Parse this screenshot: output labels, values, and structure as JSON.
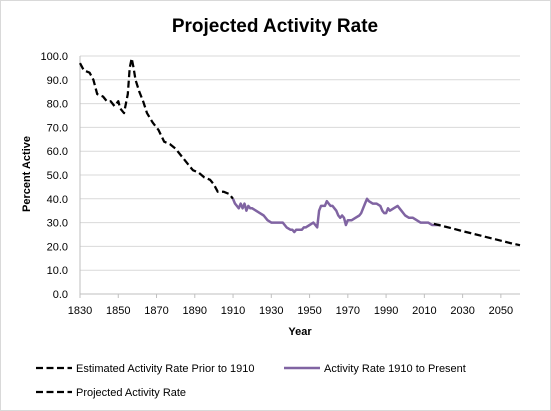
{
  "chart_data": {
    "type": "line",
    "title": "Projected Activity Rate",
    "xlabel": "Year",
    "ylabel": "Percent Active",
    "xlim": [
      1830,
      2060
    ],
    "ylim": [
      0,
      100
    ],
    "x_ticks": [
      "1830",
      "1850",
      "1870",
      "1890",
      "1910",
      "1930",
      "1950",
      "1970",
      "1990",
      "2010",
      "2030",
      "2050"
    ],
    "y_ticks": [
      "0.0",
      "10.0",
      "20.0",
      "30.0",
      "40.0",
      "50.0",
      "60.0",
      "70.0",
      "80.0",
      "90.0",
      "100.0"
    ],
    "grid": "horizontal",
    "legend_position": "bottom",
    "series": [
      {
        "name": "Estimated Activity Rate Prior to 1910",
        "color": "#000000",
        "style": "dashed",
        "x": [
          1830,
          1832,
          1835,
          1837,
          1839,
          1842,
          1844,
          1846,
          1848,
          1850,
          1851,
          1853,
          1855,
          1856,
          1857,
          1858,
          1859,
          1861,
          1863,
          1865,
          1868,
          1871,
          1874,
          1877,
          1880,
          1883,
          1886,
          1889,
          1892,
          1895,
          1898,
          1900,
          1902,
          1905,
          1908,
          1910
        ],
        "y": [
          97,
          94,
          93,
          90,
          84,
          83,
          81,
          81,
          79,
          81,
          78,
          76,
          84,
          95,
          99,
          95,
          90,
          85,
          81,
          76,
          72,
          69,
          64,
          63,
          61,
          58,
          55,
          52,
          51,
          49,
          48,
          46,
          43,
          43,
          42,
          40
        ]
      },
      {
        "name": "Activity Rate 1910 to Present",
        "color": "#8064a2",
        "style": "solid",
        "x": [
          1910,
          1911,
          1912,
          1913,
          1914,
          1915,
          1916,
          1917,
          1918,
          1919,
          1920,
          1922,
          1924,
          1926,
          1928,
          1930,
          1932,
          1934,
          1936,
          1938,
          1940,
          1941,
          1942,
          1943,
          1944,
          1945,
          1946,
          1947,
          1948,
          1950,
          1952,
          1953,
          1954,
          1955,
          1956,
          1957,
          1958,
          1959,
          1960,
          1961,
          1962,
          1963,
          1964,
          1965,
          1966,
          1967,
          1968,
          1969,
          1970,
          1972,
          1974,
          1976,
          1977,
          1978,
          1979,
          1980,
          1981,
          1983,
          1985,
          1987,
          1988,
          1989,
          1990,
          1991,
          1992,
          1994,
          1996,
          1997,
          1998,
          1999,
          2000,
          2002,
          2004,
          2006,
          2008,
          2010,
          2012,
          2014,
          2016,
          2018
        ],
        "y": [
          40,
          38,
          37,
          36,
          38,
          36,
          38,
          35,
          37,
          36,
          36,
          35,
          34,
          33,
          31,
          30,
          30,
          30,
          30,
          28,
          27,
          27,
          26,
          27,
          27,
          27,
          27,
          28,
          28,
          29,
          30,
          29,
          28,
          35,
          37,
          37,
          37,
          39,
          38,
          37,
          37,
          36,
          35,
          33,
          32,
          33,
          32,
          29,
          31,
          31,
          32,
          33,
          34,
          36,
          38,
          40,
          39,
          38,
          38,
          37,
          35,
          34,
          34,
          36,
          35,
          36,
          37,
          36,
          35,
          34,
          33,
          32,
          32,
          31,
          30,
          30,
          30,
          29,
          29,
          29
        ]
      },
      {
        "name": "Projected Activity Rate",
        "color": "#000000",
        "style": "dashed",
        "x": [
          2015,
          2020,
          2025,
          2030,
          2035,
          2040,
          2045,
          2050,
          2055,
          2060
        ],
        "y": [
          29.5,
          28.5,
          27.5,
          26.4,
          25.4,
          24.4,
          23.4,
          22.4,
          21.4,
          20.5
        ]
      }
    ]
  }
}
